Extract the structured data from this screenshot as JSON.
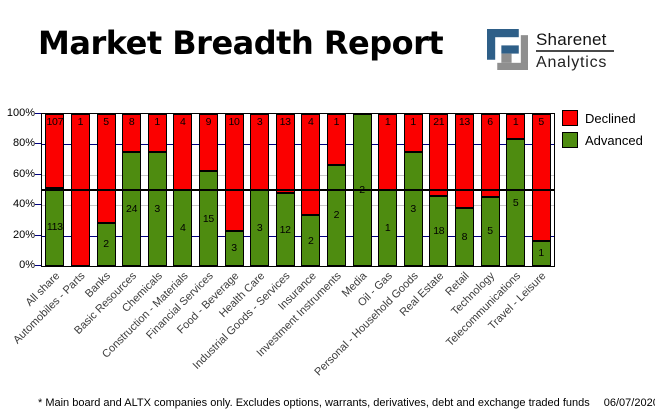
{
  "header": {
    "title": "Market Breadth Report",
    "logo": {
      "line1": "Sharenet",
      "line2": "Analytics"
    }
  },
  "colors": {
    "declined": "#fb0000",
    "advanced": "#4e8c10",
    "grid_navy": "#000080",
    "grid_gray": "#c8c8c8",
    "ref_black": "#000000"
  },
  "y_axis": {
    "ticks": [
      {
        "label": "0%",
        "value": 0
      },
      {
        "label": "20%",
        "value": 20
      },
      {
        "label": "40%",
        "value": 40
      },
      {
        "label": "60%",
        "value": 60
      },
      {
        "label": "80%",
        "value": 80
      },
      {
        "label": "100%",
        "value": 100
      }
    ]
  },
  "grid_lines": [
    {
      "value": 80,
      "color": "#000080"
    },
    {
      "value": 60,
      "color": "#c8c8c8"
    },
    {
      "value": 40,
      "color": "#c8c8c8"
    },
    {
      "value": 20,
      "color": "#000080"
    }
  ],
  "ref_line": {
    "value": 50,
    "color": "#000000"
  },
  "chart_data": {
    "type": "bar",
    "stacked": true,
    "normalized_to_percent": true,
    "title": "Market Breadth Report",
    "ylim": [
      0,
      100
    ],
    "y_tick_labels": [
      "0%",
      "20%",
      "40%",
      "60%",
      "80%",
      "100%"
    ],
    "legend_position": "top-right",
    "categories": [
      "All share",
      "Automobiles - Parts",
      "Banks",
      "Basic Resources",
      "Chemicals",
      "Construction - Materials",
      "Financial Services",
      "Food - Beverage",
      "Health Care",
      "Industrial Goods - Services",
      "Insurance",
      "Investment Instruments",
      "Media",
      "Oil - Gas",
      "Personal - Household Goods",
      "Real Estate",
      "Retail",
      "Technology",
      "Telecommunications",
      "Travel - Leisure"
    ],
    "series": [
      {
        "name": "Declined",
        "color": "#fb0000",
        "values": [
          107,
          1,
          5,
          8,
          1,
          4,
          9,
          10,
          3,
          13,
          4,
          1,
          0,
          1,
          1,
          21,
          13,
          6,
          1,
          5
        ]
      },
      {
        "name": "Advanced",
        "color": "#4e8c10",
        "values": [
          113,
          0,
          2,
          24,
          3,
          4,
          15,
          3,
          3,
          12,
          2,
          2,
          2,
          1,
          3,
          18,
          8,
          5,
          5,
          1
        ]
      }
    ]
  },
  "footer": {
    "note": "* Main board and ALTX companies only. Excludes options, warrants, derivatives, debt and exchange traded funds",
    "date": "06/07/2020"
  }
}
